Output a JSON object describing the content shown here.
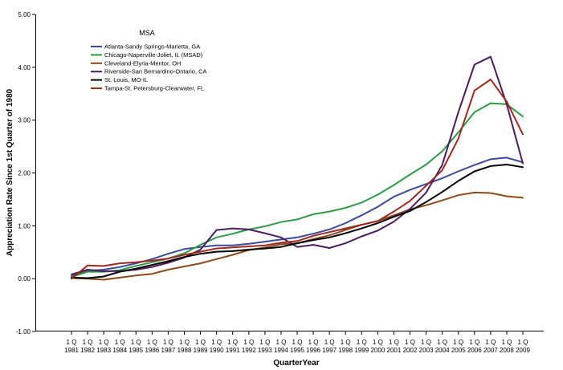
{
  "chart_data": {
    "type": "line",
    "xlabel": "QuarterYear",
    "ylabel": "Appreciation Rate Since 1st Quarter of 1980",
    "ylim": [
      -1.0,
      5.0
    ],
    "yticks": [
      "-1.00",
      "0.00",
      "1.00",
      "2.00",
      "3.00",
      "4.00",
      "5.00"
    ],
    "quarter_label": "1 Q",
    "x": [
      1981,
      1982,
      1983,
      1984,
      1985,
      1986,
      1987,
      1988,
      1989,
      1990,
      1991,
      1992,
      1993,
      1994,
      1995,
      1996,
      1997,
      1998,
      1999,
      2000,
      2001,
      2002,
      2003,
      2004,
      2005,
      2006,
      2007,
      2008,
      2009
    ],
    "x_labels": [
      "1981",
      "1982",
      "1983",
      "1984",
      "1985",
      "1986",
      "1987",
      "1988",
      "1989",
      "1990",
      "1991",
      "1992",
      "1993",
      "1994",
      "1995",
      "1996",
      "1997",
      "1998",
      "1999",
      "2000",
      "2001",
      "2002",
      "2003",
      "2004",
      "2005",
      "2006",
      "2007",
      "2008",
      "2009"
    ],
    "legend": {
      "title": "MSA",
      "placement": "top-left"
    },
    "series": [
      {
        "name": "Atlanta-Sandy Springs-Marietta, GA",
        "color": "#3c4a9c",
        "values": [
          0.05,
          0.15,
          0.17,
          0.22,
          0.29,
          0.37,
          0.47,
          0.56,
          0.6,
          0.63,
          0.63,
          0.66,
          0.7,
          0.74,
          0.78,
          0.85,
          0.93,
          1.05,
          1.2,
          1.36,
          1.55,
          1.68,
          1.79,
          1.9,
          2.03,
          2.15,
          2.26,
          2.29,
          2.2
        ]
      },
      {
        "name": "Chicago-Naperville-Joliet, IL  (MSAD)",
        "color": "#2f9a48",
        "values": [
          0.03,
          0.13,
          0.13,
          0.16,
          0.24,
          0.31,
          0.38,
          0.48,
          0.64,
          0.78,
          0.85,
          0.93,
          0.99,
          1.07,
          1.12,
          1.22,
          1.27,
          1.34,
          1.44,
          1.59,
          1.77,
          1.97,
          2.16,
          2.41,
          2.77,
          3.15,
          3.32,
          3.3,
          3.07
        ]
      },
      {
        "name": "Cleveland-Elyria-Mentor, OH",
        "color": "#8a4a1c",
        "values": [
          0.01,
          0.0,
          -0.02,
          0.02,
          0.06,
          0.09,
          0.17,
          0.23,
          0.29,
          0.37,
          0.45,
          0.54,
          0.59,
          0.65,
          0.67,
          0.75,
          0.82,
          0.92,
          1.02,
          1.09,
          1.2,
          1.31,
          1.39,
          1.48,
          1.58,
          1.63,
          1.62,
          1.56,
          1.53
        ]
      },
      {
        "name": "Riverside-San Bernardino-Ontario, CA",
        "color": "#4b1c5e",
        "values": [
          0.08,
          0.17,
          0.14,
          0.14,
          0.17,
          0.22,
          0.3,
          0.4,
          0.55,
          0.92,
          0.95,
          0.93,
          0.86,
          0.78,
          0.6,
          0.64,
          0.58,
          0.67,
          0.8,
          0.91,
          1.08,
          1.32,
          1.63,
          2.15,
          3.15,
          4.05,
          4.2,
          3.3,
          2.18
        ]
      },
      {
        "name": "St. Louis, MO-IL",
        "color": "#000000",
        "values": [
          0.02,
          0.01,
          0.04,
          0.13,
          0.19,
          0.26,
          0.33,
          0.41,
          0.47,
          0.51,
          0.52,
          0.55,
          0.57,
          0.6,
          0.67,
          0.73,
          0.78,
          0.86,
          0.95,
          1.05,
          1.17,
          1.28,
          1.45,
          1.64,
          1.85,
          2.03,
          2.13,
          2.16,
          2.11
        ]
      },
      {
        "name": "Tampa-St. Petersburg-Clearwater, FL",
        "color": "#9c2a20",
        "values": [
          0.0,
          0.25,
          0.24,
          0.29,
          0.31,
          0.34,
          0.38,
          0.45,
          0.51,
          0.57,
          0.59,
          0.61,
          0.63,
          0.68,
          0.71,
          0.81,
          0.88,
          0.95,
          1.02,
          1.09,
          1.27,
          1.47,
          1.76,
          2.05,
          2.65,
          3.56,
          3.77,
          3.35,
          2.73
        ]
      }
    ]
  }
}
